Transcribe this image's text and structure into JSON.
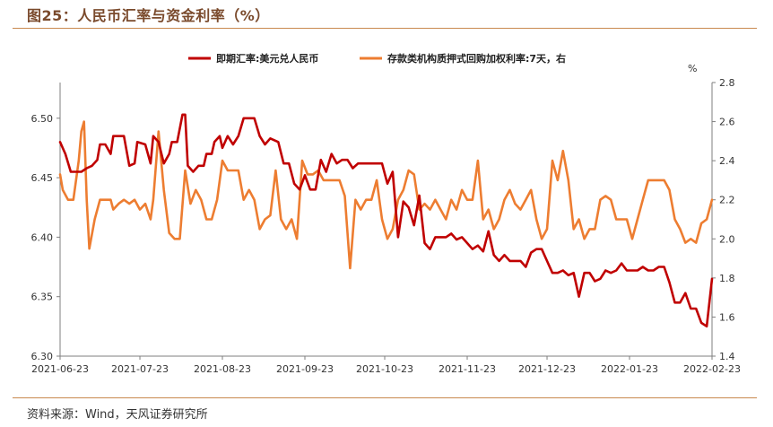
{
  "header": {
    "title": "图25：人民币汇率与资金利率（%）",
    "source": "资料来源：Wind，天风证券研究所"
  },
  "chart_data": {
    "type": "line",
    "title": "图25：人民币汇率与资金利率（%）",
    "right_axis_unit": "%",
    "legend_placement": "top-center",
    "grid": false,
    "x_ticks": [
      "2021-06-23",
      "2021-07-23",
      "2021-08-23",
      "2021-09-23",
      "2021-10-23",
      "2021-11-23",
      "2021-12-23",
      "2022-01-23",
      "2022-02-23"
    ],
    "left_axis": {
      "min": 6.3,
      "max": 6.53,
      "ticks": [
        "6.30",
        "6.35",
        "6.40",
        "6.45",
        "6.50"
      ]
    },
    "right_axis": {
      "min": 1.4,
      "max": 2.8,
      "ticks": [
        "1.4",
        "1.6",
        "1.8",
        "2.0",
        "2.2",
        "2.4",
        "2.6",
        "2.8"
      ]
    },
    "series": [
      {
        "name": "即期汇率:美元兑人民币",
        "axis": "left",
        "color": "#c00000",
        "points": [
          [
            "2021-06-23",
            6.48
          ],
          [
            "2021-06-25",
            6.47
          ],
          [
            "2021-06-27",
            6.455
          ],
          [
            "2021-07-01",
            6.455
          ],
          [
            "2021-07-03",
            6.458
          ],
          [
            "2021-07-05",
            6.46
          ],
          [
            "2021-07-07",
            6.465
          ],
          [
            "2021-07-08",
            6.478
          ],
          [
            "2021-07-10",
            6.478
          ],
          [
            "2021-07-12",
            6.47
          ],
          [
            "2021-07-13",
            6.485
          ],
          [
            "2021-07-17",
            6.485
          ],
          [
            "2021-07-19",
            6.46
          ],
          [
            "2021-07-21",
            6.462
          ],
          [
            "2021-07-22",
            6.48
          ],
          [
            "2021-07-25",
            6.478
          ],
          [
            "2021-07-27",
            6.462
          ],
          [
            "2021-07-28",
            6.485
          ],
          [
            "2021-07-30",
            6.48
          ],
          [
            "2021-08-01",
            6.462
          ],
          [
            "2021-08-03",
            6.47
          ],
          [
            "2021-08-04",
            6.48
          ],
          [
            "2021-08-06",
            6.48
          ],
          [
            "2021-08-08",
            6.503
          ],
          [
            "2021-08-09",
            6.503
          ],
          [
            "2021-08-10",
            6.46
          ],
          [
            "2021-08-12",
            6.455
          ],
          [
            "2021-08-14",
            6.46
          ],
          [
            "2021-08-16",
            6.46
          ],
          [
            "2021-08-17",
            6.47
          ],
          [
            "2021-08-19",
            6.47
          ],
          [
            "2021-08-20",
            6.48
          ],
          [
            "2021-08-22",
            6.485
          ],
          [
            "2021-08-23",
            6.475
          ],
          [
            "2021-08-25",
            6.485
          ],
          [
            "2021-08-27",
            6.478
          ],
          [
            "2021-08-29",
            6.485
          ],
          [
            "2021-08-31",
            6.5
          ],
          [
            "2021-09-04",
            6.5
          ],
          [
            "2021-09-06",
            6.485
          ],
          [
            "2021-09-08",
            6.478
          ],
          [
            "2021-09-10",
            6.483
          ],
          [
            "2021-09-13",
            6.48
          ],
          [
            "2021-09-15",
            6.462
          ],
          [
            "2021-09-17",
            6.462
          ],
          [
            "2021-09-19",
            6.445
          ],
          [
            "2021-09-21",
            6.44
          ],
          [
            "2021-09-23",
            6.452
          ],
          [
            "2021-09-25",
            6.44
          ],
          [
            "2021-09-27",
            6.44
          ],
          [
            "2021-09-29",
            6.465
          ],
          [
            "2021-10-01",
            6.455
          ],
          [
            "2021-10-03",
            6.47
          ],
          [
            "2021-10-05",
            6.462
          ],
          [
            "2021-10-07",
            6.465
          ],
          [
            "2021-10-09",
            6.465
          ],
          [
            "2021-10-11",
            6.458
          ],
          [
            "2021-10-13",
            6.462
          ],
          [
            "2021-10-22",
            6.462
          ],
          [
            "2021-10-24",
            6.445
          ],
          [
            "2021-10-26",
            6.455
          ],
          [
            "2021-10-28",
            6.4
          ],
          [
            "2021-10-30",
            6.43
          ],
          [
            "2021-11-01",
            6.425
          ],
          [
            "2021-11-03",
            6.41
          ],
          [
            "2021-11-05",
            6.435
          ],
          [
            "2021-11-07",
            6.395
          ],
          [
            "2021-11-09",
            6.39
          ],
          [
            "2021-11-11",
            6.4
          ],
          [
            "2021-11-15",
            6.4
          ],
          [
            "2021-11-17",
            6.403
          ],
          [
            "2021-11-19",
            6.398
          ],
          [
            "2021-11-21",
            6.4
          ],
          [
            "2021-11-23",
            6.395
          ],
          [
            "2021-11-25",
            6.39
          ],
          [
            "2021-11-27",
            6.393
          ],
          [
            "2021-11-29",
            6.388
          ],
          [
            "2021-12-01",
            6.405
          ],
          [
            "2021-12-03",
            6.385
          ],
          [
            "2021-12-05",
            6.38
          ],
          [
            "2021-12-07",
            6.385
          ],
          [
            "2021-12-09",
            6.38
          ],
          [
            "2021-12-11",
            6.38
          ],
          [
            "2021-12-13",
            6.38
          ],
          [
            "2021-12-15",
            6.375
          ],
          [
            "2021-12-17",
            6.387
          ],
          [
            "2021-12-19",
            6.39
          ],
          [
            "2021-12-21",
            6.39
          ],
          [
            "2021-12-23",
            6.38
          ],
          [
            "2021-12-25",
            6.37
          ],
          [
            "2021-12-27",
            6.37
          ],
          [
            "2021-12-29",
            6.372
          ],
          [
            "2021-12-31",
            6.368
          ],
          [
            "2022-01-02",
            6.37
          ],
          [
            "2022-01-04",
            6.35
          ],
          [
            "2022-01-06",
            6.37
          ],
          [
            "2022-01-08",
            6.37
          ],
          [
            "2022-01-10",
            6.363
          ],
          [
            "2022-01-12",
            6.365
          ],
          [
            "2022-01-14",
            6.372
          ],
          [
            "2022-01-16",
            6.37
          ],
          [
            "2022-01-18",
            6.372
          ],
          [
            "2022-01-20",
            6.378
          ],
          [
            "2022-01-22",
            6.372
          ],
          [
            "2022-01-24",
            6.372
          ],
          [
            "2022-01-26",
            6.372
          ],
          [
            "2022-01-28",
            6.375
          ],
          [
            "2022-01-30",
            6.372
          ],
          [
            "2022-02-01",
            6.372
          ],
          [
            "2022-02-03",
            6.375
          ],
          [
            "2022-02-05",
            6.375
          ],
          [
            "2022-02-07",
            6.362
          ],
          [
            "2022-02-09",
            6.345
          ],
          [
            "2022-02-11",
            6.345
          ],
          [
            "2022-02-13",
            6.353
          ],
          [
            "2022-02-15",
            6.34
          ],
          [
            "2022-02-17",
            6.34
          ],
          [
            "2022-02-19",
            6.328
          ],
          [
            "2022-02-21",
            6.325
          ],
          [
            "2022-02-23",
            6.365
          ]
        ]
      },
      {
        "name": "存款类机构质押式回购加权利率:7天，右",
        "axis": "right",
        "color": "#ed7d31",
        "points": [
          [
            "2021-06-23",
            2.33
          ],
          [
            "2021-06-24",
            2.25
          ],
          [
            "2021-06-26",
            2.2
          ],
          [
            "2021-06-28",
            2.2
          ],
          [
            "2021-06-30",
            2.4
          ],
          [
            "2021-07-01",
            2.55
          ],
          [
            "2021-07-02",
            2.6
          ],
          [
            "2021-07-03",
            2.2
          ],
          [
            "2021-07-04",
            1.95
          ],
          [
            "2021-07-06",
            2.1
          ],
          [
            "2021-07-08",
            2.2
          ],
          [
            "2021-07-10",
            2.2
          ],
          [
            "2021-07-12",
            2.2
          ],
          [
            "2021-07-13",
            2.15
          ],
          [
            "2021-07-15",
            2.18
          ],
          [
            "2021-07-17",
            2.2
          ],
          [
            "2021-07-19",
            2.18
          ],
          [
            "2021-07-21",
            2.2
          ],
          [
            "2021-07-23",
            2.15
          ],
          [
            "2021-07-25",
            2.18
          ],
          [
            "2021-07-27",
            2.1
          ],
          [
            "2021-07-28",
            2.2
          ],
          [
            "2021-07-30",
            2.55
          ],
          [
            "2021-08-01",
            2.25
          ],
          [
            "2021-08-03",
            2.03
          ],
          [
            "2021-08-05",
            2.0
          ],
          [
            "2021-08-07",
            2.0
          ],
          [
            "2021-08-09",
            2.35
          ],
          [
            "2021-08-11",
            2.18
          ],
          [
            "2021-08-13",
            2.25
          ],
          [
            "2021-08-15",
            2.2
          ],
          [
            "2021-08-17",
            2.1
          ],
          [
            "2021-08-19",
            2.1
          ],
          [
            "2021-08-21",
            2.2
          ],
          [
            "2021-08-23",
            2.4
          ],
          [
            "2021-08-25",
            2.35
          ],
          [
            "2021-08-27",
            2.35
          ],
          [
            "2021-08-29",
            2.35
          ],
          [
            "2021-08-31",
            2.2
          ],
          [
            "2021-09-02",
            2.25
          ],
          [
            "2021-09-04",
            2.2
          ],
          [
            "2021-09-06",
            2.05
          ],
          [
            "2021-09-08",
            2.1
          ],
          [
            "2021-09-10",
            2.12
          ],
          [
            "2021-09-12",
            2.35
          ],
          [
            "2021-09-14",
            2.1
          ],
          [
            "2021-09-16",
            2.05
          ],
          [
            "2021-09-18",
            2.1
          ],
          [
            "2021-09-20",
            2.0
          ],
          [
            "2021-09-22",
            2.4
          ],
          [
            "2021-09-24",
            2.33
          ],
          [
            "2021-09-26",
            2.33
          ],
          [
            "2021-09-28",
            2.35
          ],
          [
            "2021-09-30",
            2.3
          ],
          [
            "2021-10-02",
            2.3
          ],
          [
            "2021-10-04",
            2.3
          ],
          [
            "2021-10-06",
            2.3
          ],
          [
            "2021-10-08",
            2.22
          ],
          [
            "2021-10-10",
            1.85
          ],
          [
            "2021-10-12",
            2.2
          ],
          [
            "2021-10-14",
            2.15
          ],
          [
            "2021-10-16",
            2.2
          ],
          [
            "2021-10-18",
            2.2
          ],
          [
            "2021-10-20",
            2.3
          ],
          [
            "2021-10-22",
            2.1
          ],
          [
            "2021-10-24",
            2.0
          ],
          [
            "2021-10-26",
            2.05
          ],
          [
            "2021-10-28",
            2.2
          ],
          [
            "2021-10-30",
            2.25
          ],
          [
            "2021-11-01",
            2.35
          ],
          [
            "2021-11-03",
            2.33
          ],
          [
            "2021-11-05",
            2.15
          ],
          [
            "2021-11-07",
            2.18
          ],
          [
            "2021-11-09",
            2.15
          ],
          [
            "2021-11-11",
            2.2
          ],
          [
            "2021-11-13",
            2.15
          ],
          [
            "2021-11-15",
            2.1
          ],
          [
            "2021-11-17",
            2.2
          ],
          [
            "2021-11-19",
            2.15
          ],
          [
            "2021-11-21",
            2.25
          ],
          [
            "2021-11-23",
            2.2
          ],
          [
            "2021-11-25",
            2.2
          ],
          [
            "2021-11-27",
            2.4
          ],
          [
            "2021-11-29",
            2.1
          ],
          [
            "2021-12-01",
            2.15
          ],
          [
            "2021-12-03",
            2.05
          ],
          [
            "2021-12-05",
            2.1
          ],
          [
            "2021-12-07",
            2.2
          ],
          [
            "2021-12-09",
            2.25
          ],
          [
            "2021-12-11",
            2.18
          ],
          [
            "2021-12-13",
            2.15
          ],
          [
            "2021-12-15",
            2.2
          ],
          [
            "2021-12-17",
            2.25
          ],
          [
            "2021-12-19",
            2.1
          ],
          [
            "2021-12-21",
            2.0
          ],
          [
            "2021-12-23",
            2.05
          ],
          [
            "2021-12-25",
            2.4
          ],
          [
            "2021-12-27",
            2.3
          ],
          [
            "2021-12-29",
            2.45
          ],
          [
            "2021-12-31",
            2.3
          ],
          [
            "2022-01-02",
            2.05
          ],
          [
            "2022-01-04",
            2.1
          ],
          [
            "2022-01-06",
            2.0
          ],
          [
            "2022-01-08",
            2.05
          ],
          [
            "2022-01-10",
            2.05
          ],
          [
            "2022-01-12",
            2.2
          ],
          [
            "2022-01-14",
            2.22
          ],
          [
            "2022-01-16",
            2.2
          ],
          [
            "2022-01-18",
            2.1
          ],
          [
            "2022-01-20",
            2.1
          ],
          [
            "2022-01-22",
            2.1
          ],
          [
            "2022-01-24",
            2.0
          ],
          [
            "2022-01-26",
            2.1
          ],
          [
            "2022-01-28",
            2.2
          ],
          [
            "2022-01-30",
            2.3
          ],
          [
            "2022-02-01",
            2.3
          ],
          [
            "2022-02-05",
            2.3
          ],
          [
            "2022-02-07",
            2.25
          ],
          [
            "2022-02-09",
            2.1
          ],
          [
            "2022-02-11",
            2.05
          ],
          [
            "2022-02-13",
            1.98
          ],
          [
            "2022-02-15",
            2.0
          ],
          [
            "2022-02-17",
            1.98
          ],
          [
            "2022-02-19",
            2.08
          ],
          [
            "2022-02-21",
            2.1
          ],
          [
            "2022-02-23",
            2.2
          ]
        ]
      }
    ]
  }
}
